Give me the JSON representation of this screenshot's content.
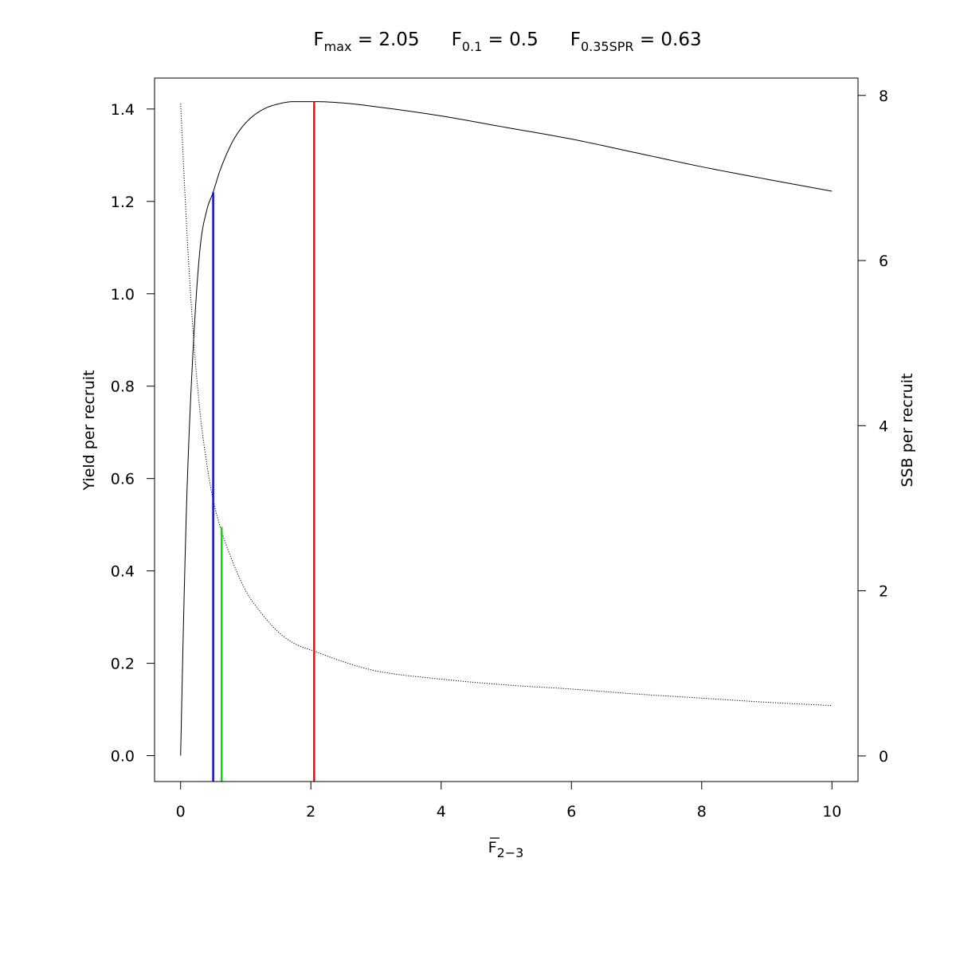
{
  "title": {
    "parts": [
      {
        "main": "F",
        "sub": "max",
        "rest": " = 2.05"
      },
      {
        "main": "F",
        "sub": "0.1",
        "rest": " = 0.5"
      },
      {
        "main": "F",
        "sub": "0.35SPR",
        "rest": " = 0.63"
      }
    ]
  },
  "chart_data": {
    "type": "line",
    "xlabel": {
      "main": "F",
      "sub": "2−3",
      "overline": true
    },
    "ylabel": "Yield per recruit",
    "y2label": "SSB per recruit",
    "xlim": [
      -0.4,
      10.4
    ],
    "ylim": [
      -0.056,
      1.467
    ],
    "y2lim": [
      -0.31,
      8.21
    ],
    "x_ticks": [
      0,
      2,
      4,
      6,
      8,
      10
    ],
    "y_ticks": [
      0.0,
      0.2,
      0.4,
      0.6,
      0.8,
      1.0,
      1.2,
      1.4
    ],
    "y_tick_labels": [
      "0.0",
      "0.2",
      "0.4",
      "0.6",
      "0.8",
      "1.0",
      "1.2",
      "1.4"
    ],
    "y2_ticks": [
      0,
      2,
      4,
      6,
      8
    ],
    "y2_tick_labels": [
      "0",
      "2",
      "4",
      "6",
      "8"
    ],
    "series": [
      {
        "axis": "left",
        "style": "solid",
        "color": "#000000",
        "x": [
          0,
          0.05,
          0.1,
          0.2,
          0.3,
          0.4,
          0.5,
          0.6,
          0.8,
          1.0,
          1.25,
          1.5,
          1.75,
          2.05,
          2.5,
          3,
          4,
          5,
          6,
          7,
          8,
          9,
          10
        ],
        "y": [
          0,
          0.32,
          0.58,
          0.9,
          1.1,
          1.18,
          1.22,
          1.265,
          1.33,
          1.37,
          1.398,
          1.411,
          1.416,
          1.416,
          1.413,
          1.405,
          1.385,
          1.36,
          1.335,
          1.305,
          1.275,
          1.248,
          1.222
        ]
      },
      {
        "axis": "right",
        "style": "dotted",
        "color": "#000000",
        "x": [
          0,
          0.1,
          0.2,
          0.3,
          0.4,
          0.5,
          0.63,
          0.8,
          1.0,
          1.25,
          1.5,
          1.75,
          2.05,
          2.5,
          3,
          4,
          5,
          6,
          7,
          8,
          9,
          10
        ],
        "y": [
          7.9,
          6.3,
          5.05,
          4.15,
          3.55,
          3.1,
          2.72,
          2.35,
          2.0,
          1.72,
          1.5,
          1.36,
          1.27,
          1.14,
          1.03,
          0.93,
          0.86,
          0.81,
          0.75,
          0.7,
          0.65,
          0.61
        ]
      }
    ],
    "reference_lines": [
      {
        "x": 0.5,
        "y": 1.22,
        "color": "#0000ff"
      },
      {
        "x": 0.63,
        "y": 0.495,
        "color": "#00dd00"
      },
      {
        "x": 2.05,
        "y": 1.416,
        "color": "#ff0000"
      }
    ]
  }
}
